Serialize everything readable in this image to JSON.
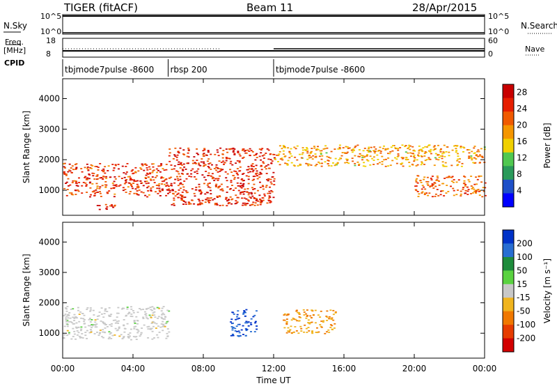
{
  "header": {
    "radar": "TIGER (fitACF)",
    "beam": "Beam 11",
    "date": "28/Apr/2015"
  },
  "status": {
    "nsky_label": "N.Sky",
    "nsky_ticks": [
      "10^5",
      "10^0"
    ],
    "nsearch_label": "N.Search",
    "nsearch_ticks": [
      "10^5",
      "10^0"
    ],
    "freq_label": "Freq.",
    "freq_unit": "[MHz]",
    "freq_ticks": [
      "18",
      "8"
    ],
    "nave_label": "Nave",
    "nave_ticks": [
      "60",
      "0"
    ],
    "cpid_label": "CPID",
    "cpid_segments": [
      {
        "name": "tbjmode7pulse  -8600",
        "start": "00:00",
        "end": "06:00"
      },
      {
        "name": "rbsp 200",
        "start": "06:00",
        "end": "12:00"
      },
      {
        "name": "tbjmode7pulse  -8600",
        "start": "12:00",
        "end": "24:00"
      }
    ]
  },
  "colors": {
    "power_scale": [
      "#0000ff",
      "#1e50c8",
      "#2a9a5a",
      "#50c850",
      "#f0d000",
      "#f59600",
      "#f05a00",
      "#e61e00",
      "#c80000"
    ],
    "velocity_scale": [
      "#0032c8",
      "#286ed2",
      "#1e8c3c",
      "#5ad240",
      "#c8c8c8",
      "#f0b41e",
      "#f07800",
      "#e63c00",
      "#d20000"
    ],
    "grid": "#bbbbbb"
  },
  "chart_data": [
    {
      "type": "heatmap",
      "title": "Power",
      "ylabel": "Slant Range [km]",
      "xlabel": "",
      "x_range": [
        "00:00",
        "24:00"
      ],
      "ylim": [
        180,
        4650
      ],
      "yticks": [
        "1000",
        "2000",
        "3000",
        "4000"
      ],
      "colorbar": {
        "label": "Power [dB]",
        "ticks": [
          "4",
          "8",
          "12",
          "16",
          "20",
          "24",
          "28"
        ],
        "range": [
          0,
          30
        ]
      },
      "features": [
        {
          "name": "scatter_band_0h_6h",
          "t_start": 0.0,
          "t_end": 6.0,
          "range_km": [
            800,
            1900
          ],
          "power_db": 24
        },
        {
          "name": "scatter_patch_2h",
          "t_start": 1.8,
          "t_end": 3.0,
          "range_km": [
            380,
            600
          ],
          "power_db": 26
        },
        {
          "name": "scatter_band_6h_12h",
          "t_start": 6.0,
          "t_end": 12.0,
          "range_km": [
            500,
            2400
          ],
          "power_db": 25
        },
        {
          "name": "scatter_band_12h_24h",
          "t_start": 12.0,
          "t_end": 24.0,
          "range_km": [
            1800,
            2500
          ],
          "power_db": 18
        },
        {
          "name": "scatter_band_20h_24h",
          "t_start": 20.0,
          "t_end": 24.0,
          "range_km": [
            800,
            1500
          ],
          "power_db": 22
        }
      ]
    },
    {
      "type": "heatmap",
      "title": "Velocity",
      "ylabel": "Slant Range [km]",
      "xlabel": "Time UT",
      "xticks": [
        "00:00",
        "04:00",
        "08:00",
        "12:00",
        "16:00",
        "20:00",
        "00:00"
      ],
      "x_range": [
        "00:00",
        "24:00"
      ],
      "ylim": [
        180,
        4650
      ],
      "yticks": [
        "1000",
        "2000",
        "3000",
        "4000"
      ],
      "colorbar": {
        "label": "Velocity [m s⁻¹]",
        "ticks": [
          "200",
          "100",
          "50",
          "15",
          "-15",
          "-50",
          "-100",
          "-200"
        ],
        "range": [
          -250,
          250
        ]
      },
      "features": [
        {
          "name": "ground_scatter_0h_6h",
          "t_start": 0.0,
          "t_end": 6.0,
          "range_km": [
            800,
            1900
          ],
          "velocity_ms": 0
        },
        {
          "name": "flow_10h",
          "t_start": 9.5,
          "t_end": 11.0,
          "range_km": [
            900,
            1800
          ],
          "velocity_ms": 200
        },
        {
          "name": "flow_13h",
          "t_start": 12.5,
          "t_end": 15.5,
          "range_km": [
            1000,
            1800
          ],
          "velocity_ms": -80
        }
      ]
    }
  ]
}
